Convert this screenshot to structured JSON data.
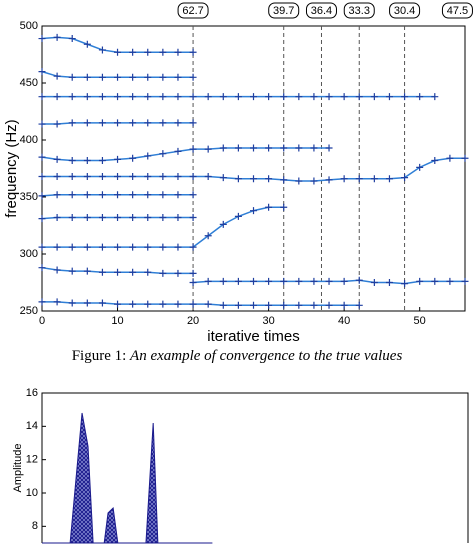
{
  "chart_data": [
    {
      "type": "line",
      "xlabel": "iterative times",
      "ylabel": "frequency (Hz)",
      "xlim": [
        0,
        56
      ],
      "ylim": [
        250,
        500
      ],
      "xticks": [
        0,
        10,
        20,
        30,
        40,
        50
      ],
      "yticks": [
        250,
        300,
        350,
        400,
        450,
        500
      ],
      "marker": "+",
      "vlines": [
        20,
        32,
        37,
        42,
        48
      ],
      "annotations": [
        {
          "x": 20,
          "label": "62.7"
        },
        {
          "x": 32,
          "label": "39.7"
        },
        {
          "x": 37,
          "label": "36.4"
        },
        {
          "x": 42,
          "label": "33.3"
        },
        {
          "x": 48,
          "label": "30.4"
        },
        {
          "x": 55,
          "label": "47.5"
        }
      ],
      "series": [
        {
          "color": "#2f7fd6",
          "x": [
            0,
            2,
            4,
            6,
            8,
            10,
            12,
            14,
            16,
            18,
            20
          ],
          "values": [
            489,
            490,
            489,
            484,
            479,
            477,
            477,
            477,
            477,
            477,
            477
          ]
        },
        {
          "color": "#2f7fd6",
          "x": [
            0,
            2,
            4,
            6,
            8,
            10,
            12,
            14,
            16,
            18,
            20
          ],
          "values": [
            460,
            456,
            455,
            455,
            455,
            455,
            455,
            455,
            455,
            455,
            455
          ]
        },
        {
          "color": "#2f7fd6",
          "x": [
            0,
            2,
            4,
            6,
            8,
            10,
            12,
            14,
            16,
            18,
            20,
            22,
            24,
            26,
            28,
            30,
            32,
            34,
            36,
            38,
            40,
            42,
            44,
            46,
            48,
            50,
            52
          ],
          "values": [
            438,
            438,
            438,
            438,
            438,
            438,
            438,
            438,
            438,
            438,
            438,
            438,
            438,
            438,
            438,
            438,
            438,
            438,
            438,
            438,
            438,
            438,
            438,
            438,
            438,
            438,
            438
          ]
        },
        {
          "color": "#2f7fd6",
          "x": [
            0,
            2,
            4,
            6,
            8,
            10,
            12,
            14,
            16,
            18,
            20
          ],
          "values": [
            414,
            414,
            415,
            415,
            415,
            415,
            415,
            415,
            415,
            415,
            415
          ]
        },
        {
          "color": "#2f7fd6",
          "x": [
            0,
            2,
            4,
            6,
            8,
            10,
            12,
            14,
            16,
            18,
            20,
            22,
            24,
            26,
            28,
            30,
            32,
            34,
            36,
            38
          ],
          "values": [
            385,
            383,
            382,
            382,
            382,
            383,
            384,
            386,
            388,
            390,
            392,
            392,
            393,
            393,
            393,
            393,
            393,
            393,
            393,
            393
          ]
        },
        {
          "color": "#2f7fd6",
          "x": [
            0,
            2,
            4,
            6,
            8,
            10,
            12,
            14,
            16,
            18,
            20,
            22,
            24,
            26,
            28,
            30,
            32,
            34,
            36,
            38,
            40,
            42,
            44,
            46,
            48,
            50,
            52,
            54,
            56
          ],
          "values": [
            368,
            368,
            368,
            368,
            368,
            368,
            368,
            368,
            368,
            368,
            368,
            368,
            367,
            366,
            366,
            366,
            365,
            364,
            364,
            365,
            366,
            366,
            366,
            366,
            367,
            376,
            382,
            384,
            384
          ]
        },
        {
          "color": "#2f7fd6",
          "x": [
            0,
            2,
            4,
            6,
            8,
            10,
            12,
            14,
            16,
            18,
            20
          ],
          "values": [
            351,
            352,
            352,
            352,
            352,
            352,
            352,
            352,
            352,
            352,
            352
          ]
        },
        {
          "color": "#2f7fd6",
          "x": [
            0,
            2,
            4,
            6,
            8,
            10,
            12,
            14,
            16,
            18,
            20
          ],
          "values": [
            331,
            332,
            332,
            332,
            332,
            332,
            332,
            332,
            332,
            332,
            332
          ]
        },
        {
          "color": "#2f7fd6",
          "x": [
            0,
            2,
            4,
            6,
            8,
            10,
            12,
            14,
            16,
            18,
            20,
            22,
            24,
            26,
            28,
            30,
            32
          ],
          "values": [
            306,
            306,
            306,
            306,
            306,
            306,
            306,
            306,
            306,
            306,
            306,
            316,
            326,
            333,
            338,
            341,
            341
          ]
        },
        {
          "color": "#2f7fd6",
          "x": [
            0,
            2,
            4,
            6,
            8,
            10,
            12,
            14,
            16,
            18,
            20
          ],
          "values": [
            288,
            286,
            285,
            285,
            284,
            284,
            284,
            284,
            283,
            283,
            283
          ]
        },
        {
          "color": "#2f7fd6",
          "x": [
            20,
            22,
            24,
            26,
            28,
            30,
            32,
            34,
            36,
            38,
            40,
            42,
            44,
            46,
            48,
            50,
            52,
            54,
            56
          ],
          "values": [
            275,
            276,
            276,
            276,
            276,
            276,
            276,
            276,
            276,
            276,
            276,
            277,
            275,
            275,
            274,
            276,
            276,
            276,
            276
          ]
        },
        {
          "color": "#2f7fd6",
          "x": [
            0,
            2,
            4,
            6,
            8,
            10,
            12,
            14,
            16,
            18,
            20,
            22,
            24,
            26,
            28,
            30,
            32,
            34,
            36,
            38,
            40,
            42
          ],
          "values": [
            258,
            258,
            257,
            257,
            257,
            256,
            256,
            256,
            256,
            256,
            256,
            256,
            255,
            255,
            255,
            255,
            255,
            255,
            255,
            255,
            255,
            255
          ]
        }
      ]
    },
    {
      "type": "area",
      "ylabel": "Amplitude",
      "xlim": [
        0,
        100
      ],
      "ylim": [
        7,
        16
      ],
      "yticks": [
        8,
        10,
        12,
        14,
        16
      ],
      "series": [
        {
          "color": "#1a1a8c",
          "x": [
            0,
            6.6,
            9.4,
            10.8,
            12,
            14.6,
            15.5,
            16.7,
            17.8,
            24.4,
            26.1,
            27.2,
            40
          ],
          "values": [
            7,
            7,
            14.8,
            12.8,
            7,
            7,
            8.8,
            9.1,
            7,
            7,
            14.2,
            7,
            7
          ]
        }
      ]
    }
  ],
  "captions": [
    {
      "label": "Figure 1:",
      "text": "An example of convergence to the true values"
    }
  ]
}
